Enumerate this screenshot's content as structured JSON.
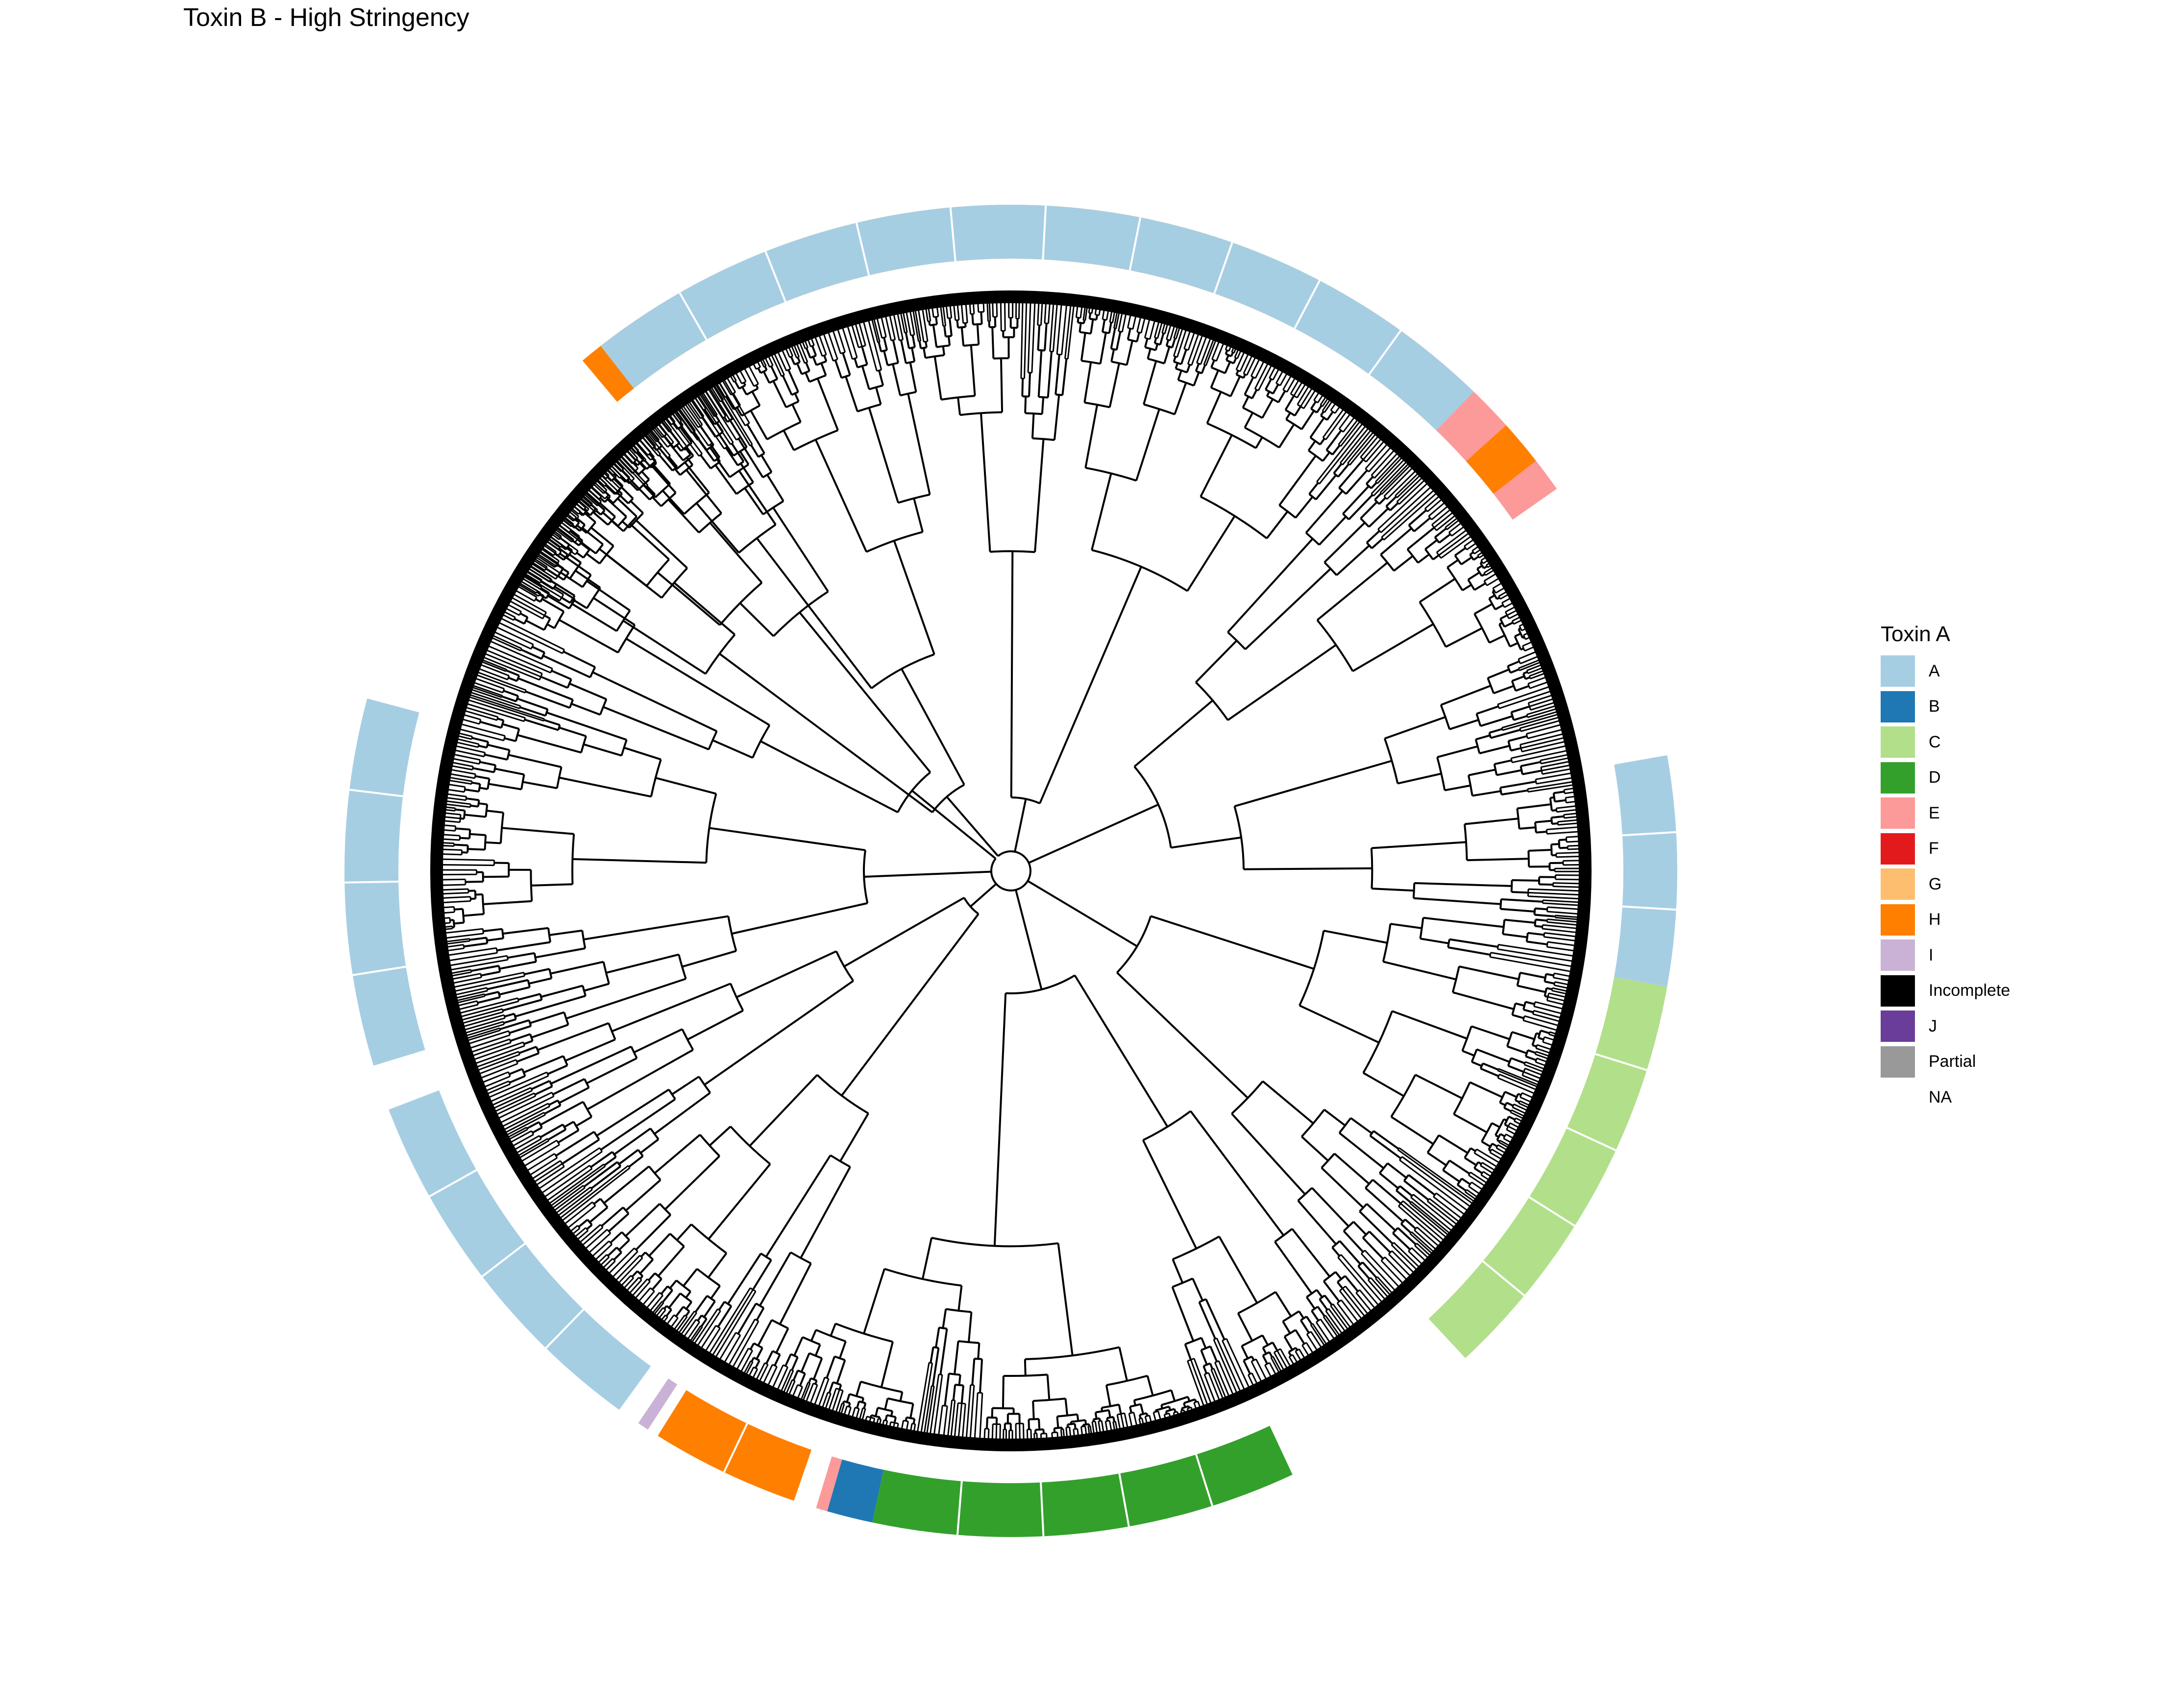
{
  "title": "Toxin B - High Stringency",
  "legend": {
    "title": "Toxin A",
    "items": [
      {
        "label": "A",
        "color": "#a6cee3"
      },
      {
        "label": "B",
        "color": "#1f78b4"
      },
      {
        "label": "C",
        "color": "#b2df8a"
      },
      {
        "label": "D",
        "color": "#33a02c"
      },
      {
        "label": "E",
        "color": "#fb9a99"
      },
      {
        "label": "F",
        "color": "#e31a1c"
      },
      {
        "label": "G",
        "color": "#fdbf6f"
      },
      {
        "label": "H",
        "color": "#ff7f00"
      },
      {
        "label": "I",
        "color": "#cab2d6"
      },
      {
        "label": "Incomplete",
        "color": "#000000"
      },
      {
        "label": "J",
        "color": "#6a3d9a"
      },
      {
        "label": "Partial",
        "color": "#999999"
      },
      {
        "label": "NA",
        "color": "#ffffff"
      }
    ]
  },
  "tree": {
    "layout": "circular",
    "branch_color": "#000000"
  },
  "ring": {
    "description_free": true,
    "segments": [
      {
        "start_deg": -40,
        "end_deg": 30,
        "category": "H"
      },
      {
        "start_deg": 30,
        "end_deg": 34,
        "category": "E"
      },
      {
        "start_deg": 34,
        "end_deg": 38,
        "category": "H"
      },
      {
        "start_deg": 38,
        "end_deg": 48,
        "category": "E"
      },
      {
        "start_deg": 48,
        "end_deg": 52,
        "category": "H"
      },
      {
        "start_deg": 52,
        "end_deg": 55,
        "category": "E"
      },
      {
        "start_deg": 80,
        "end_deg": 100,
        "category": "A"
      },
      {
        "start_deg": 100,
        "end_deg": 137,
        "category": "C"
      },
      {
        "start_deg": 155,
        "end_deg": 192,
        "category": "D"
      },
      {
        "start_deg": 192,
        "end_deg": 196,
        "category": "B"
      },
      {
        "start_deg": 196,
        "end_deg": 197,
        "category": "E"
      },
      {
        "start_deg": 199,
        "end_deg": 212,
        "category": "H"
      },
      {
        "start_deg": 213,
        "end_deg": 214,
        "category": "I"
      },
      {
        "start_deg": 216,
        "end_deg": 249,
        "category": "A"
      },
      {
        "start_deg": 253,
        "end_deg": 285,
        "category": "A"
      },
      {
        "start_deg": 322,
        "end_deg": 404,
        "category": "A"
      }
    ]
  }
}
